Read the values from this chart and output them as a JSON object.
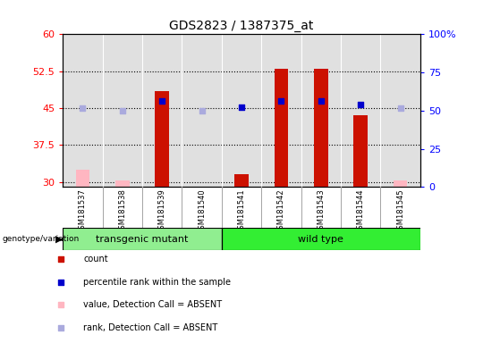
{
  "title": "GDS2823 / 1387375_at",
  "samples": [
    "GSM181537",
    "GSM181538",
    "GSM181539",
    "GSM181540",
    "GSM181541",
    "GSM181542",
    "GSM181543",
    "GSM181544",
    "GSM181545"
  ],
  "count_values": [
    null,
    null,
    48.5,
    null,
    31.5,
    53.0,
    53.0,
    43.5,
    null
  ],
  "count_absent": [
    32.5,
    30.3,
    null,
    null,
    null,
    null,
    null,
    null,
    30.3
  ],
  "rank_values": [
    null,
    null,
    46.5,
    null,
    45.2,
    46.5,
    46.5,
    45.8,
    null
  ],
  "rank_absent": [
    45.0,
    44.5,
    null,
    44.5,
    null,
    null,
    null,
    null,
    45.0
  ],
  "ylim_left": [
    29,
    60
  ],
  "ylim_right": [
    0,
    100
  ],
  "yticks_left": [
    30,
    37.5,
    45,
    52.5,
    60
  ],
  "yticks_right": [
    0,
    25,
    50,
    75,
    100
  ],
  "ytick_labels_left": [
    "30",
    "37.5",
    "45",
    "52.5",
    "60"
  ],
  "ytick_labels_right": [
    "0",
    "25",
    "50",
    "75",
    "100%"
  ],
  "groups": [
    {
      "label": "transgenic mutant",
      "start": 0,
      "end": 3
    },
    {
      "label": "wild type",
      "start": 4,
      "end": 8
    }
  ],
  "group_color_light": "#90EE90",
  "group_color_bright": "#33EE33",
  "bar_color_red": "#CC1100",
  "bar_color_pink": "#FFB6C1",
  "dot_color_blue": "#0000CC",
  "dot_color_lightblue": "#AAAADD",
  "bar_width": 0.35,
  "dot_size": 18,
  "grid_color": "black",
  "grid_style": "dotted",
  "background_plot": "#E0E0E0",
  "sample_bg": "#CCCCCC",
  "legend_items": [
    {
      "label": "count",
      "color": "#CC1100"
    },
    {
      "label": "percentile rank within the sample",
      "color": "#0000CC"
    },
    {
      "label": "value, Detection Call = ABSENT",
      "color": "#FFB6C1"
    },
    {
      "label": "rank, Detection Call = ABSENT",
      "color": "#AAAADD"
    }
  ]
}
